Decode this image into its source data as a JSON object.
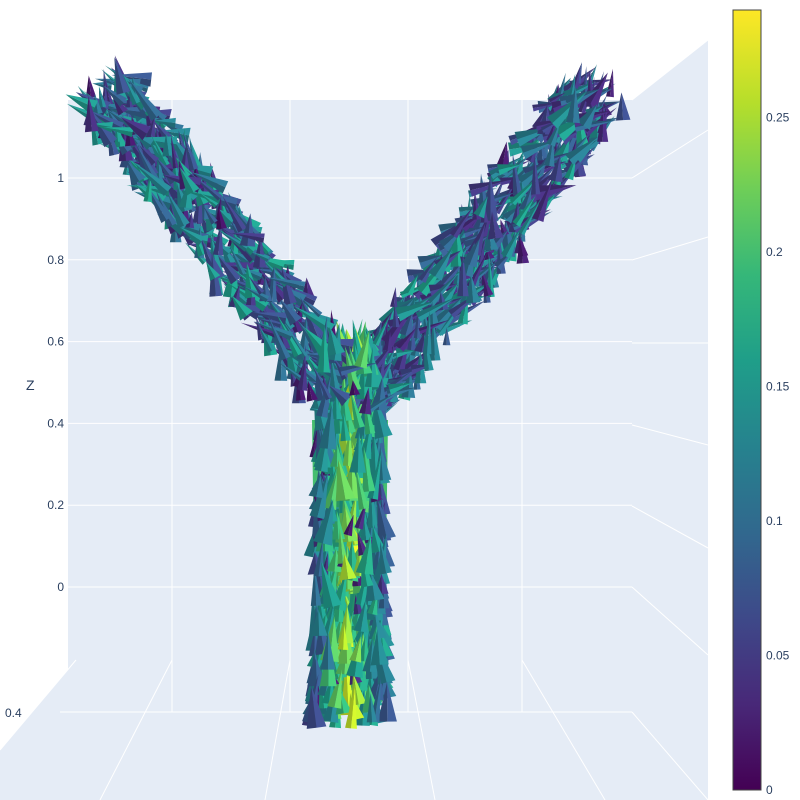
{
  "chart_data": {
    "type": "cone",
    "title": "",
    "axes": {
      "z": {
        "title": "Z",
        "range": [
          -0.2,
          1.2
        ],
        "ticks": [
          0,
          0.2,
          0.4,
          0.6,
          0.8,
          1
        ],
        "tick_labels": [
          "0",
          "0.2",
          "0.4",
          "0.6",
          "0.8",
          "1"
        ]
      },
      "visible_other_tick_labels": [
        "0.4"
      ]
    },
    "shape": "Y-shaped tube: a vertical trunk splitting into two arms",
    "branches": [
      {
        "name": "",
        "from": [
          0,
          0.45
        ],
        "to": [
          -0.55,
          1.2
        ]
      },
      {
        "name": "",
        "from": [
          0,
          0.45
        ],
        "to": [
          0.55,
          1.2
        ]
      },
      {
        "name": "",
        "from": [
          0,
          -0.3
        ],
        "to": [
          0,
          0.5
        ]
      }
    ],
    "colorbar": {
      "colorscale": "Viridis",
      "range": [
        0,
        0.29
      ],
      "ticks": [
        0,
        0.05,
        0.1,
        0.15,
        0.2,
        0.25
      ],
      "tick_labels": [
        "0",
        "0.05",
        "0.1",
        "0.15",
        "0.2",
        "0.25"
      ]
    },
    "colors": {
      "scene_background": "#e5ecf6",
      "grid": "#ffffff",
      "viridis_stops": [
        "#440154",
        "#482878",
        "#3e4989",
        "#31688e",
        "#26828e",
        "#1f9e89",
        "#35b779",
        "#6ece58",
        "#b5de2b",
        "#fde725"
      ]
    }
  }
}
